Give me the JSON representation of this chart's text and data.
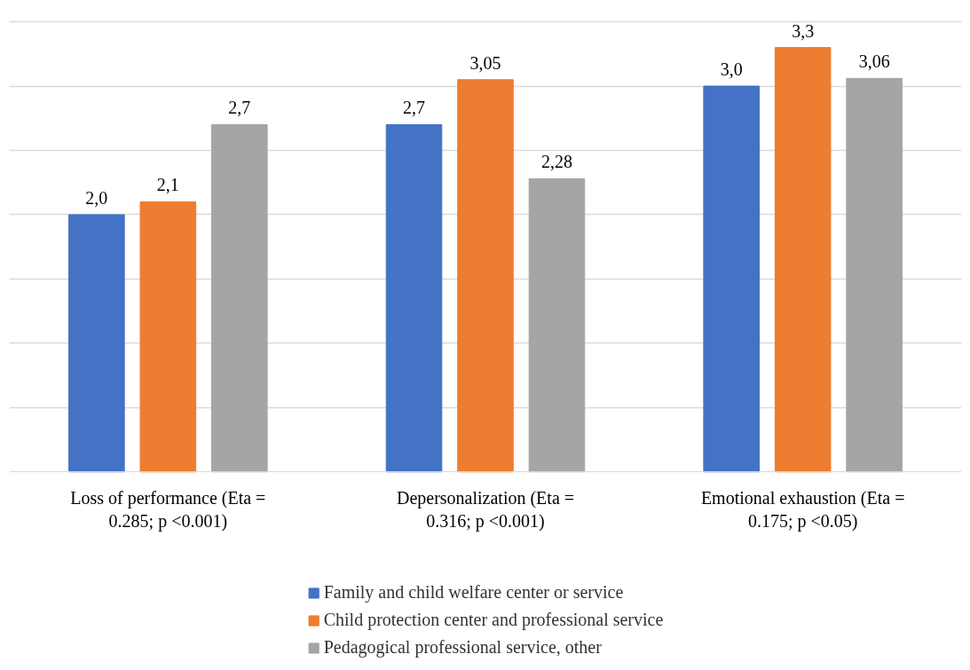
{
  "chart_data": {
    "type": "bar",
    "categories": [
      "Loss of performance (Eta = 0.285; p <0.001)",
      "Depersonalization (Eta = 0.316; p <0.001)",
      "Emotional exhaustion (Eta = 0.175; p <0.05)"
    ],
    "series": [
      {
        "name": "Family and child welfare center or service",
        "color": "#4472c4",
        "values": [
          2.0,
          2.7,
          3.0
        ],
        "value_labels": [
          "2,0",
          "2,7",
          "3,0"
        ]
      },
      {
        "name": "Child protection center and professional service",
        "color": "#ed7d31",
        "values": [
          2.1,
          3.05,
          3.3
        ],
        "value_labels": [
          "2,1",
          "3,05",
          "3,3"
        ]
      },
      {
        "name": "Pedagogical professional service, other",
        "color": "#a5a5a5",
        "values": [
          2.7,
          2.28,
          3.06
        ],
        "value_labels": [
          "2,7",
          "2,28",
          "3,06"
        ]
      }
    ],
    "yticks": [
      {
        "value": 0.5,
        "label": null
      },
      {
        "value": 1,
        "label": null
      },
      {
        "value": 1.5,
        "label": null
      },
      {
        "value": 2,
        "label": null
      },
      {
        "value": 2.5,
        "label": null
      },
      {
        "value": 3,
        "label": null
      },
      {
        "value": 3.5,
        "label": null
      }
    ],
    "tick_labels": "x",
    "grid": "y",
    "legend": "bottom"
  }
}
